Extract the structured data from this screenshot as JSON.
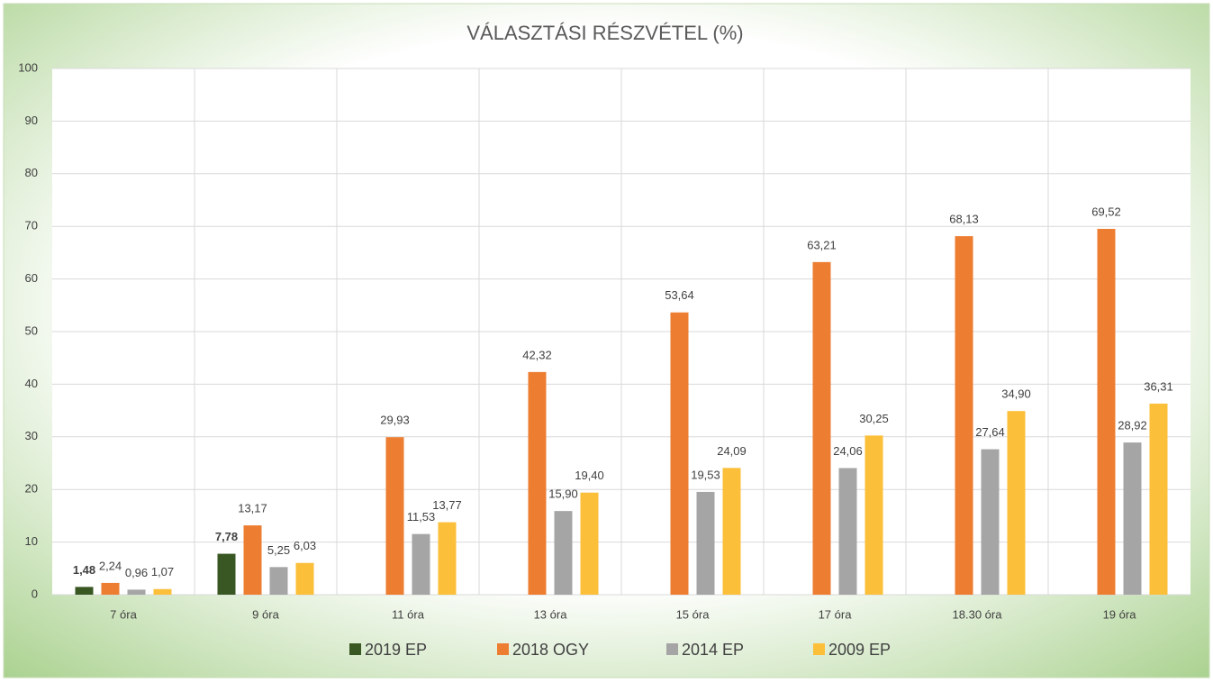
{
  "chart_data": {
    "type": "bar",
    "title": "VÁLASZTÁSI RÉSZVÉTEL (%)",
    "categories": [
      "7 óra",
      "9 óra",
      "11 óra",
      "13 óra",
      "15 óra",
      "17 óra",
      "18.30 óra",
      "19 óra"
    ],
    "series": [
      {
        "name": "2019 EP",
        "color": "#385723",
        "values": [
          1.48,
          7.78,
          null,
          null,
          null,
          null,
          null,
          null
        ],
        "value_labels": [
          "1,48",
          "7,78",
          null,
          null,
          null,
          null,
          null,
          null
        ]
      },
      {
        "name": "2018 OGY",
        "color": "#ed7d31",
        "values": [
          2.24,
          13.17,
          29.93,
          42.32,
          53.64,
          63.21,
          68.13,
          69.52
        ],
        "value_labels": [
          "2,24",
          "13,17",
          "29,93",
          "42,32",
          "53,64",
          "63,21",
          "68,13",
          "69,52"
        ]
      },
      {
        "name": "2014 EP",
        "color": "#a5a5a5",
        "values": [
          0.96,
          5.25,
          11.53,
          15.9,
          19.53,
          24.06,
          27.64,
          28.92
        ],
        "value_labels": [
          "0,96",
          "5,25",
          "11,53",
          "15,90",
          "19,53",
          "24,06",
          "27,64",
          "28,92"
        ]
      },
      {
        "name": "2009 EP",
        "color": "#fbbf3a",
        "values": [
          1.07,
          6.03,
          13.77,
          19.4,
          24.09,
          30.25,
          34.9,
          36.31
        ],
        "value_labels": [
          "1,07",
          "6,03",
          "13,77",
          "19,40",
          "24,09",
          "30,25",
          "34,90",
          "36,31"
        ]
      }
    ],
    "ylim": [
      0,
      100
    ],
    "yticks": [
      0,
      10,
      20,
      30,
      40,
      50,
      60,
      70,
      80,
      90,
      100
    ],
    "grid": true,
    "legend": "bottom"
  }
}
